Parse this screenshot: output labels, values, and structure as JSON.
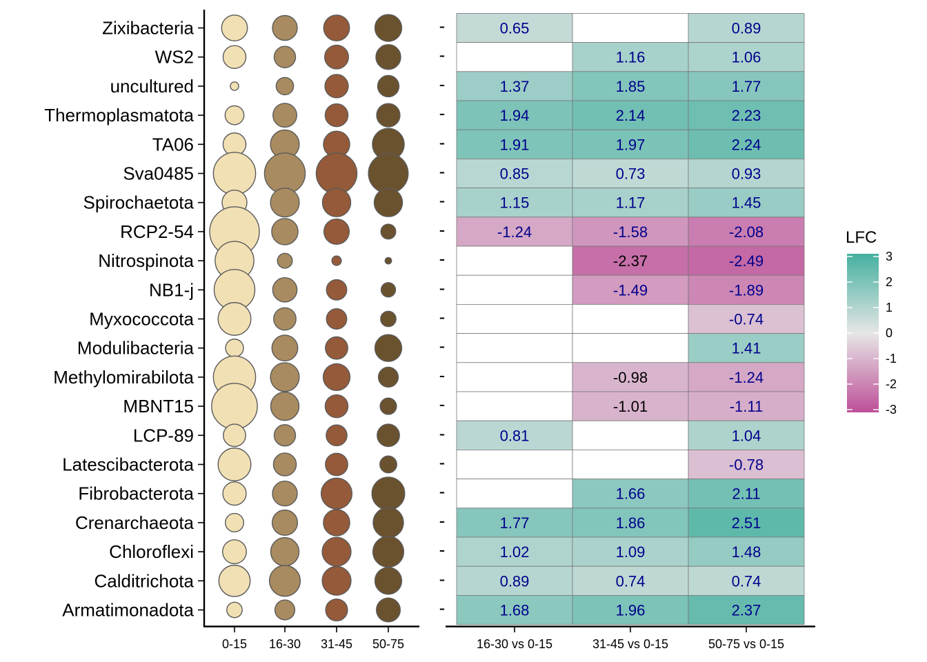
{
  "chart_data": [
    {
      "type": "scatter",
      "title": "",
      "categories_x": [
        "0-15",
        "16-30",
        "31-45",
        "50-75"
      ],
      "categories_y": [
        "Zixibacteria",
        "WS2",
        "uncultured",
        "Thermoplasmatota",
        "TA06",
        "Sva0485",
        "Spirochaetota",
        "RCP2-54",
        "Nitrospinota",
        "NB1-j",
        "Myxococcota",
        "Modulibacteria",
        "Methylomirabilota",
        "MBNT15",
        "LCP-89",
        "Latescibacterota",
        "Fibrobacterota",
        "Crenarchaeota",
        "Chloroflexi",
        "Calditrichota",
        "Armatimonadota"
      ],
      "colors": [
        "#f2e0b5",
        "#a88b60",
        "#955a39",
        "#6b522e"
      ],
      "point_size_relative": [
        [
          0.52,
          0.5,
          0.52,
          0.54
        ],
        [
          0.46,
          0.43,
          0.48,
          0.5
        ],
        [
          0.17,
          0.35,
          0.47,
          0.43
        ],
        [
          0.38,
          0.48,
          0.46,
          0.47
        ],
        [
          0.46,
          0.58,
          0.53,
          0.64
        ],
        [
          0.85,
          0.82,
          0.82,
          0.8
        ],
        [
          0.5,
          0.58,
          0.57,
          0.57
        ],
        [
          1.0,
          0.53,
          0.51,
          0.3
        ],
        [
          0.78,
          0.3,
          0.19,
          0.13
        ],
        [
          0.82,
          0.49,
          0.41,
          0.29
        ],
        [
          0.66,
          0.45,
          0.41,
          0.31
        ],
        [
          0.36,
          0.52,
          0.45,
          0.54
        ],
        [
          0.85,
          0.58,
          0.54,
          0.4
        ],
        [
          0.92,
          0.57,
          0.46,
          0.33
        ],
        [
          0.45,
          0.43,
          0.42,
          0.45
        ],
        [
          0.66,
          0.46,
          0.45,
          0.34
        ],
        [
          0.47,
          0.5,
          0.62,
          0.66
        ],
        [
          0.37,
          0.51,
          0.53,
          0.61
        ],
        [
          0.48,
          0.57,
          0.58,
          0.62
        ],
        [
          0.63,
          0.62,
          0.58,
          0.54
        ],
        [
          0.31,
          0.4,
          0.44,
          0.48
        ]
      ]
    },
    {
      "type": "heatmap",
      "title": "",
      "categories_x": [
        "16-30 vs 0-15",
        "31-45 vs 0-15",
        "50-75 vs 0-15"
      ],
      "categories_y": [
        "Zixibacteria",
        "WS2",
        "uncultured",
        "Thermoplasmatota",
        "TA06",
        "Sva0485",
        "Spirochaetota",
        "RCP2-54",
        "Nitrospinota",
        "NB1-j",
        "Myxococcota",
        "Modulibacteria",
        "Methylomirabilota",
        "MBNT15",
        "LCP-89",
        "Latescibacterota",
        "Fibrobacterota",
        "Crenarchaeota",
        "Chloroflexi",
        "Calditrichota",
        "Armatimonadota"
      ],
      "row_marker": "-",
      "values": [
        [
          0.65,
          null,
          0.89
        ],
        [
          null,
          1.16,
          1.06
        ],
        [
          1.37,
          1.85,
          1.77
        ],
        [
          1.94,
          2.14,
          2.23
        ],
        [
          1.91,
          1.97,
          2.24
        ],
        [
          0.85,
          0.73,
          0.93
        ],
        [
          1.15,
          1.17,
          1.45
        ],
        [
          -1.24,
          -1.58,
          -2.08
        ],
        [
          null,
          -2.37,
          -2.49
        ],
        [
          null,
          -1.49,
          -1.89
        ],
        [
          null,
          null,
          -0.74
        ],
        [
          null,
          null,
          1.41
        ],
        [
          null,
          -0.98,
          -1.24
        ],
        [
          null,
          -1.01,
          -1.11
        ],
        [
          0.81,
          null,
          1.04
        ],
        [
          null,
          null,
          -0.78
        ],
        [
          null,
          1.66,
          2.11
        ],
        [
          1.77,
          1.86,
          2.51
        ],
        [
          1.02,
          1.09,
          1.48
        ],
        [
          0.89,
          0.74,
          0.74
        ],
        [
          1.68,
          1.96,
          2.37
        ]
      ],
      "label_dark_cells": [
        [
          8,
          1
        ],
        [
          12,
          1
        ],
        [
          13,
          1
        ]
      ],
      "legend": {
        "title": "LFC",
        "ticks": [
          "3",
          "2",
          "1",
          "0",
          "-1",
          "-2",
          "-3"
        ],
        "range": [
          -3,
          3
        ],
        "colors": {
          "low": "#bd4f98",
          "mid": "#e6e6e6",
          "high": "#44b09f"
        },
        "placement": "right"
      },
      "label_colors": {
        "default": "#00008b",
        "dark": "#000000"
      }
    }
  ]
}
